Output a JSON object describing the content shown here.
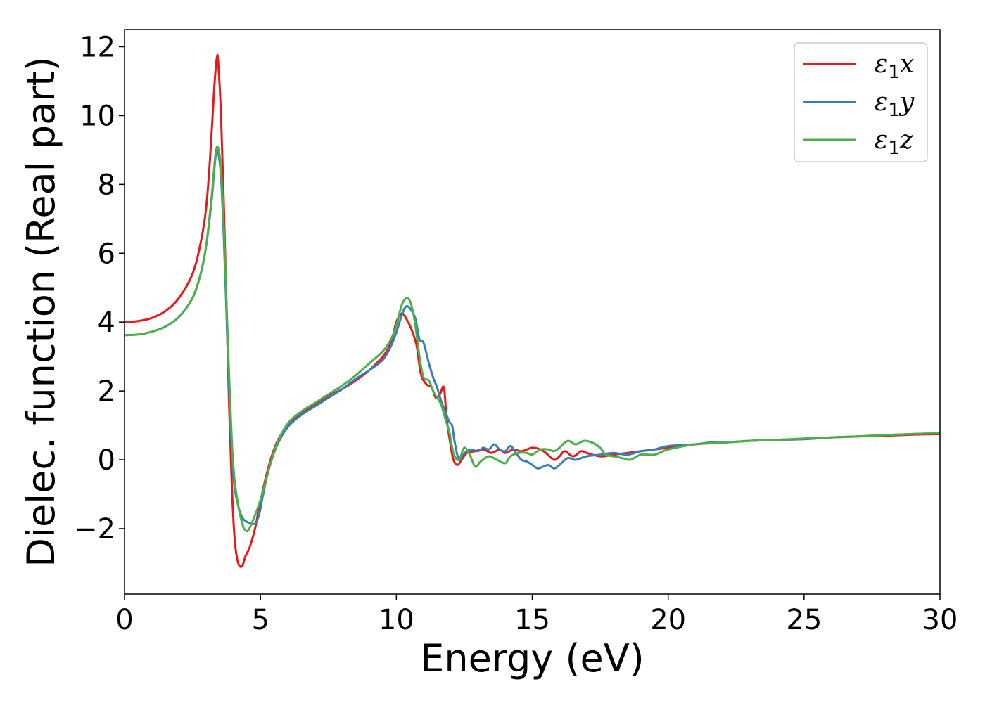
{
  "chart_data": {
    "type": "line",
    "title": "",
    "xlabel": "Energy (eV)",
    "ylabel": "Dielec. function (Real part)",
    "xlim": [
      0,
      30
    ],
    "ylim": [
      -3.9,
      12.5
    ],
    "xticks": [
      0,
      5,
      10,
      15,
      20,
      25,
      30
    ],
    "xtick_labels": [
      "0",
      "5",
      "10",
      "15",
      "20",
      "25",
      "30"
    ],
    "yticks": [
      -2,
      0,
      2,
      4,
      6,
      8,
      10,
      12
    ],
    "ytick_labels": [
      "−2",
      "0",
      "2",
      "4",
      "6",
      "8",
      "10",
      "12"
    ],
    "grid": false,
    "legend_position": "top-right",
    "series": [
      {
        "name": "ε₁x",
        "legend_symbol": "ε",
        "legend_subscript": "1",
        "legend_suffix": "x",
        "color": "#e41a1c",
        "points": [
          [
            0,
            4.0
          ],
          [
            0.5,
            4.03
          ],
          [
            1.0,
            4.12
          ],
          [
            1.5,
            4.32
          ],
          [
            2.0,
            4.7
          ],
          [
            2.5,
            5.4
          ],
          [
            2.8,
            6.3
          ],
          [
            3.0,
            7.3
          ],
          [
            3.15,
            8.8
          ],
          [
            3.3,
            10.8
          ],
          [
            3.4,
            11.7
          ],
          [
            3.45,
            11.5
          ],
          [
            3.55,
            10.0
          ],
          [
            3.65,
            7.5
          ],
          [
            3.75,
            4.5
          ],
          [
            3.85,
            1.5
          ],
          [
            3.95,
            -0.8
          ],
          [
            4.05,
            -2.3
          ],
          [
            4.15,
            -2.9
          ],
          [
            4.25,
            -3.1
          ],
          [
            4.35,
            -3.05
          ],
          [
            4.45,
            -2.8
          ],
          [
            4.6,
            -2.55
          ],
          [
            4.8,
            -2.0
          ],
          [
            5.0,
            -1.2
          ],
          [
            5.3,
            -0.2
          ],
          [
            5.6,
            0.5
          ],
          [
            6.0,
            1.0
          ],
          [
            6.5,
            1.35
          ],
          [
            7.0,
            1.6
          ],
          [
            7.5,
            1.85
          ],
          [
            8.0,
            2.05
          ],
          [
            8.5,
            2.3
          ],
          [
            9.0,
            2.6
          ],
          [
            9.5,
            3.0
          ],
          [
            9.8,
            3.4
          ],
          [
            10.0,
            4.0
          ],
          [
            10.2,
            4.25
          ],
          [
            10.4,
            4.05
          ],
          [
            10.6,
            3.7
          ],
          [
            10.75,
            3.3
          ],
          [
            10.9,
            2.5
          ],
          [
            11.1,
            2.2
          ],
          [
            11.3,
            2.1
          ],
          [
            11.45,
            1.8
          ],
          [
            11.6,
            1.9
          ],
          [
            11.75,
            2.1
          ],
          [
            11.85,
            1.2
          ],
          [
            12.0,
            0.4
          ],
          [
            12.1,
            0.0
          ],
          [
            12.25,
            -0.15
          ],
          [
            12.4,
            0.0
          ],
          [
            12.6,
            0.2
          ],
          [
            12.9,
            0.25
          ],
          [
            13.2,
            0.3
          ],
          [
            13.5,
            0.2
          ],
          [
            13.8,
            0.3
          ],
          [
            14.0,
            0.2
          ],
          [
            14.3,
            0.3
          ],
          [
            14.6,
            0.25
          ],
          [
            15.0,
            0.35
          ],
          [
            15.3,
            0.3
          ],
          [
            15.5,
            0.2
          ],
          [
            15.8,
            0.0
          ],
          [
            16.0,
            0.1
          ],
          [
            16.2,
            0.25
          ],
          [
            16.5,
            0.1
          ],
          [
            16.8,
            0.25
          ],
          [
            17.0,
            0.2
          ],
          [
            17.5,
            0.1
          ],
          [
            18.0,
            0.15
          ],
          [
            18.5,
            0.2
          ],
          [
            19.0,
            0.25
          ],
          [
            19.5,
            0.3
          ],
          [
            20.0,
            0.35
          ],
          [
            21.0,
            0.45
          ],
          [
            22.0,
            0.5
          ],
          [
            23.0,
            0.55
          ],
          [
            24.0,
            0.58
          ],
          [
            25.0,
            0.6
          ],
          [
            26.0,
            0.65
          ],
          [
            27.0,
            0.68
          ],
          [
            28.0,
            0.7
          ],
          [
            29.0,
            0.73
          ],
          [
            30.0,
            0.75
          ]
        ]
      },
      {
        "name": "ε₁y",
        "legend_symbol": "ε",
        "legend_subscript": "1",
        "legend_suffix": "y",
        "color": "#377eb8",
        "points": [
          [
            0,
            3.62
          ],
          [
            0.5,
            3.64
          ],
          [
            1.0,
            3.72
          ],
          [
            1.5,
            3.87
          ],
          [
            2.0,
            4.15
          ],
          [
            2.5,
            4.7
          ],
          [
            2.8,
            5.4
          ],
          [
            3.0,
            6.2
          ],
          [
            3.2,
            7.5
          ],
          [
            3.35,
            8.8
          ],
          [
            3.45,
            8.9
          ],
          [
            3.55,
            8.2
          ],
          [
            3.65,
            6.5
          ],
          [
            3.75,
            4.3
          ],
          [
            3.85,
            2.0
          ],
          [
            3.95,
            0.2
          ],
          [
            4.05,
            -0.8
          ],
          [
            4.2,
            -1.4
          ],
          [
            4.35,
            -1.7
          ],
          [
            4.5,
            -1.8
          ],
          [
            4.65,
            -1.85
          ],
          [
            4.8,
            -1.85
          ],
          [
            4.95,
            -1.6
          ],
          [
            5.1,
            -1.0
          ],
          [
            5.3,
            -0.3
          ],
          [
            5.6,
            0.4
          ],
          [
            6.0,
            0.95
          ],
          [
            6.5,
            1.3
          ],
          [
            7.0,
            1.55
          ],
          [
            7.5,
            1.8
          ],
          [
            8.0,
            2.05
          ],
          [
            8.5,
            2.35
          ],
          [
            9.0,
            2.6
          ],
          [
            9.5,
            2.9
          ],
          [
            9.8,
            3.3
          ],
          [
            10.0,
            3.7
          ],
          [
            10.2,
            4.2
          ],
          [
            10.35,
            4.45
          ],
          [
            10.5,
            4.4
          ],
          [
            10.7,
            4.1
          ],
          [
            10.85,
            3.5
          ],
          [
            11.0,
            3.4
          ],
          [
            11.2,
            2.8
          ],
          [
            11.35,
            2.4
          ],
          [
            11.5,
            2.1
          ],
          [
            11.65,
            1.7
          ],
          [
            11.8,
            1.4
          ],
          [
            11.95,
            1.1
          ],
          [
            12.05,
            1.0
          ],
          [
            12.15,
            0.5
          ],
          [
            12.3,
            0.0
          ],
          [
            12.45,
            0.15
          ],
          [
            12.7,
            0.3
          ],
          [
            13.0,
            0.25
          ],
          [
            13.2,
            0.35
          ],
          [
            13.4,
            0.3
          ],
          [
            13.6,
            0.45
          ],
          [
            13.8,
            0.3
          ],
          [
            14.0,
            0.25
          ],
          [
            14.2,
            0.4
          ],
          [
            14.4,
            0.2
          ],
          [
            14.6,
            0.0
          ],
          [
            14.8,
            -0.05
          ],
          [
            15.0,
            -0.15
          ],
          [
            15.2,
            -0.25
          ],
          [
            15.4,
            -0.2
          ],
          [
            15.6,
            -0.15
          ],
          [
            15.8,
            -0.25
          ],
          [
            16.0,
            -0.15
          ],
          [
            16.3,
            0.05
          ],
          [
            16.6,
            0.0
          ],
          [
            17.0,
            0.1
          ],
          [
            17.5,
            0.15
          ],
          [
            18.0,
            0.2
          ],
          [
            18.5,
            0.15
          ],
          [
            19.0,
            0.25
          ],
          [
            19.5,
            0.3
          ],
          [
            20.0,
            0.4
          ],
          [
            21.0,
            0.45
          ],
          [
            21.5,
            0.5
          ],
          [
            22.0,
            0.5
          ],
          [
            23.0,
            0.55
          ],
          [
            24.0,
            0.58
          ],
          [
            25.0,
            0.6
          ],
          [
            26.0,
            0.65
          ],
          [
            27.0,
            0.68
          ],
          [
            28.0,
            0.72
          ],
          [
            29.0,
            0.75
          ],
          [
            30.0,
            0.77
          ]
        ]
      },
      {
        "name": "ε₁z",
        "legend_symbol": "ε",
        "legend_subscript": "1",
        "legend_suffix": "z",
        "color": "#4daf4a",
        "points": [
          [
            0,
            3.62
          ],
          [
            0.5,
            3.64
          ],
          [
            1.0,
            3.72
          ],
          [
            1.5,
            3.87
          ],
          [
            2.0,
            4.15
          ],
          [
            2.5,
            4.7
          ],
          [
            2.8,
            5.4
          ],
          [
            3.0,
            6.2
          ],
          [
            3.2,
            7.6
          ],
          [
            3.35,
            8.9
          ],
          [
            3.45,
            9.05
          ],
          [
            3.55,
            8.4
          ],
          [
            3.65,
            6.8
          ],
          [
            3.75,
            4.6
          ],
          [
            3.85,
            2.4
          ],
          [
            3.95,
            0.5
          ],
          [
            4.05,
            -0.6
          ],
          [
            4.2,
            -1.4
          ],
          [
            4.35,
            -1.9
          ],
          [
            4.45,
            -2.05
          ],
          [
            4.55,
            -2.05
          ],
          [
            4.7,
            -1.8
          ],
          [
            4.9,
            -1.4
          ],
          [
            5.1,
            -0.9
          ],
          [
            5.3,
            -0.3
          ],
          [
            5.6,
            0.45
          ],
          [
            6.0,
            1.05
          ],
          [
            6.5,
            1.4
          ],
          [
            7.0,
            1.65
          ],
          [
            7.5,
            1.9
          ],
          [
            8.0,
            2.15
          ],
          [
            8.5,
            2.45
          ],
          [
            9.0,
            2.8
          ],
          [
            9.5,
            3.15
          ],
          [
            9.8,
            3.5
          ],
          [
            10.0,
            3.9
          ],
          [
            10.2,
            4.5
          ],
          [
            10.4,
            4.7
          ],
          [
            10.55,
            4.5
          ],
          [
            10.7,
            3.9
          ],
          [
            10.85,
            3.0
          ],
          [
            11.0,
            2.4
          ],
          [
            11.2,
            2.3
          ],
          [
            11.35,
            2.0
          ],
          [
            11.5,
            1.8
          ],
          [
            11.65,
            1.6
          ],
          [
            11.8,
            1.2
          ],
          [
            11.95,
            0.8
          ],
          [
            12.1,
            0.2
          ],
          [
            12.3,
            0.0
          ],
          [
            12.5,
            0.35
          ],
          [
            12.7,
            0.15
          ],
          [
            12.9,
            -0.2
          ],
          [
            13.1,
            -0.05
          ],
          [
            13.4,
            0.1
          ],
          [
            13.7,
            0.0
          ],
          [
            14.0,
            -0.1
          ],
          [
            14.2,
            0.1
          ],
          [
            14.5,
            0.2
          ],
          [
            14.8,
            0.2
          ],
          [
            15.0,
            0.15
          ],
          [
            15.3,
            0.3
          ],
          [
            15.6,
            0.3
          ],
          [
            15.8,
            0.25
          ],
          [
            16.0,
            0.35
          ],
          [
            16.3,
            0.55
          ],
          [
            16.6,
            0.45
          ],
          [
            16.9,
            0.55
          ],
          [
            17.2,
            0.5
          ],
          [
            17.5,
            0.35
          ],
          [
            17.7,
            0.15
          ],
          [
            18.0,
            0.1
          ],
          [
            18.3,
            0.05
          ],
          [
            18.6,
            0.0
          ],
          [
            19.0,
            0.15
          ],
          [
            19.5,
            0.15
          ],
          [
            20.0,
            0.3
          ],
          [
            21.0,
            0.45
          ],
          [
            22.0,
            0.5
          ],
          [
            23.0,
            0.55
          ],
          [
            24.0,
            0.58
          ],
          [
            25.0,
            0.62
          ],
          [
            26.0,
            0.65
          ],
          [
            27.0,
            0.68
          ],
          [
            28.0,
            0.72
          ],
          [
            29.0,
            0.75
          ],
          [
            30.0,
            0.77
          ]
        ]
      }
    ]
  }
}
